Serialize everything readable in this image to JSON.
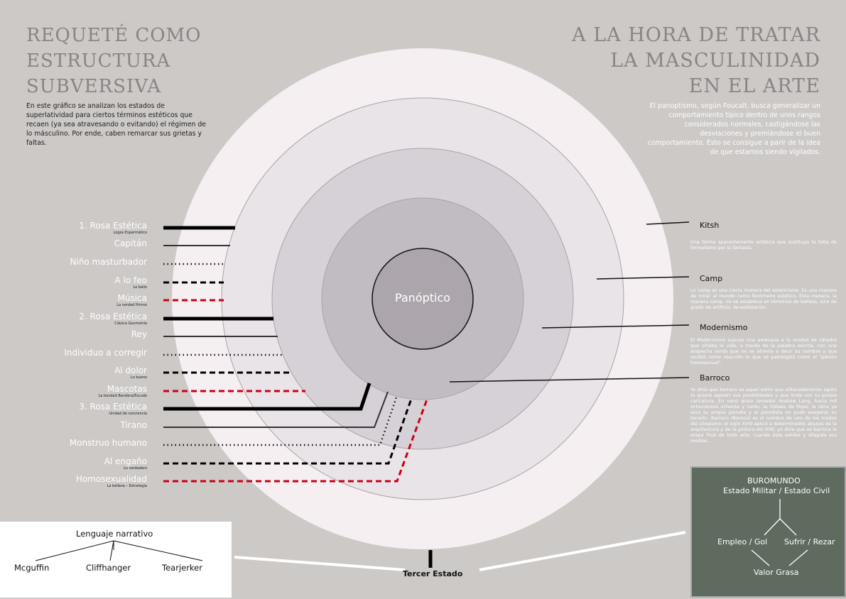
{
  "title_left": "Requeté como estructura subversiva",
  "title_left_lines": [
    "REQUETÉ COMO",
    "ESTRUCTURA",
    "SUBVERSIVA"
  ],
  "title_right_lines": [
    "A LA HORA DE TRATAR",
    "LA MASCULINIDAD",
    "EN EL ARTE"
  ],
  "intro_left": "En este gráfico se analizan los estados de superlatividad para ciertos términos estéticos que recaen (ya sea atravesando o evitando) el régimen de lo másculino. Por ende, caben remarcar sus grietas y faltas.",
  "intro_right": "El panoptismo, según Foucalt, busca generalizar un comportamiento típico dentro de unos rangos considerados normales, castigándose las desviaciones y premiándose el buen comportamiento. Esto se consigue a parir de la idea de que estamos siendo vigilados.",
  "center_label": "Panóptico",
  "colors": {
    "background": "#ccc9c7",
    "ring1": "#f5eff2",
    "ring2": "#e9e4e8",
    "ring3": "#d6d1d6",
    "ring4": "#c1bcc2",
    "core": "#aca6ac",
    "red": "#cc0011",
    "green_box": "#5e6b5e"
  },
  "left_items": [
    {
      "label": "1. Rosa Estética",
      "sub": "Logos Espermático",
      "style": "thick"
    },
    {
      "label": "Capitán",
      "sub": "",
      "style": "thin"
    },
    {
      "label": "Niño masturbador",
      "sub": "",
      "style": "dotted"
    },
    {
      "label": "A lo feo",
      "sub": "Lo bello",
      "style": "dashed"
    },
    {
      "label": "Música",
      "sub": "La verdad    Himno",
      "style": "red-dashed"
    },
    {
      "label": "2. Rosa Estética",
      "sub": "Clásica Geometría",
      "style": "thick"
    },
    {
      "label": "Rey",
      "sub": "",
      "style": "thin"
    },
    {
      "label": "Individuo a corregir",
      "sub": "",
      "style": "dotted"
    },
    {
      "label": "Al dolor",
      "sub": "Lo bueno",
      "style": "dashed"
    },
    {
      "label": "Mascotas",
      "sub": "La bondad    Bandera/Escudo",
      "style": "red-dashed"
    },
    {
      "label": "3. Rosa Estética",
      "sub": "Unidad de conciencia",
      "style": "thick"
    },
    {
      "label": "Tirano",
      "sub": "",
      "style": "thin"
    },
    {
      "label": "Monstruo humano",
      "sub": "",
      "style": "dotted"
    },
    {
      "label": "Al engaño",
      "sub": "Lo verdadero",
      "style": "dashed"
    },
    {
      "label": "Homosexualidad",
      "sub": "La belleza – Estrategia",
      "style": "red-dashed"
    }
  ],
  "right_items": [
    {
      "title": "Kitsh",
      "text": "Una forma aparentemente artística que sustituye la falta de formalismo por la fantasía."
    },
    {
      "title": "Camp",
      "text": "Lo camp es una cierta manera del esteticismo. Es una manera de mirar al mundo como fenómeno estético. Esta manera, la manera camp, no se establece en términos de belleza, sino de grado de artificio, de estilización."
    },
    {
      "title": "Modernismo",
      "text": "El Modernismo supuso una amenaza a la unidad de cátedra que sitiaba la vida, a través de la palabra escrita, con una sospecha sorda que no se atrevía a decir su nombre y que recibió como reacción lo que se patologizó como el \"pánico homosexual\"."
    },
    {
      "title": "Barroco",
      "text": "Yo diría que barroco es aquel estilo que eliberadamente agota (o quiere agotar) sus posibilidades y que linda con su porpia caricatura. En vano quiso remedar Andrew Lang, hacia mil ochocientos ochenta y tanto, la Odisea de Pope; la obra ya esra su propia parodia y el parodista no pudo exagerar su tensión. Barroco (Baroco) es el nombre de uno de los modos del silogismo; el siglo XVIII aplicó a determinados abusos de la arquitectura y de la pintura del XVII; yo diría que es barroca la etapa final de todo arte, cuando éste exhibe y dilapida sus medios."
    }
  ],
  "narrative": {
    "root": "Lenguaje narrativo",
    "children": [
      "Mcguffin",
      "Cliffhanger",
      "Tearjerker"
    ]
  },
  "bottom_label": "Tercer Estado",
  "buromundo": {
    "title": "BUROMUNDO",
    "subtitle": "Estado Militar / Estado Civil",
    "left": "Empleo / Gol",
    "right": "Sufrir / Rezar",
    "bottom": "Valor Grasa"
  }
}
